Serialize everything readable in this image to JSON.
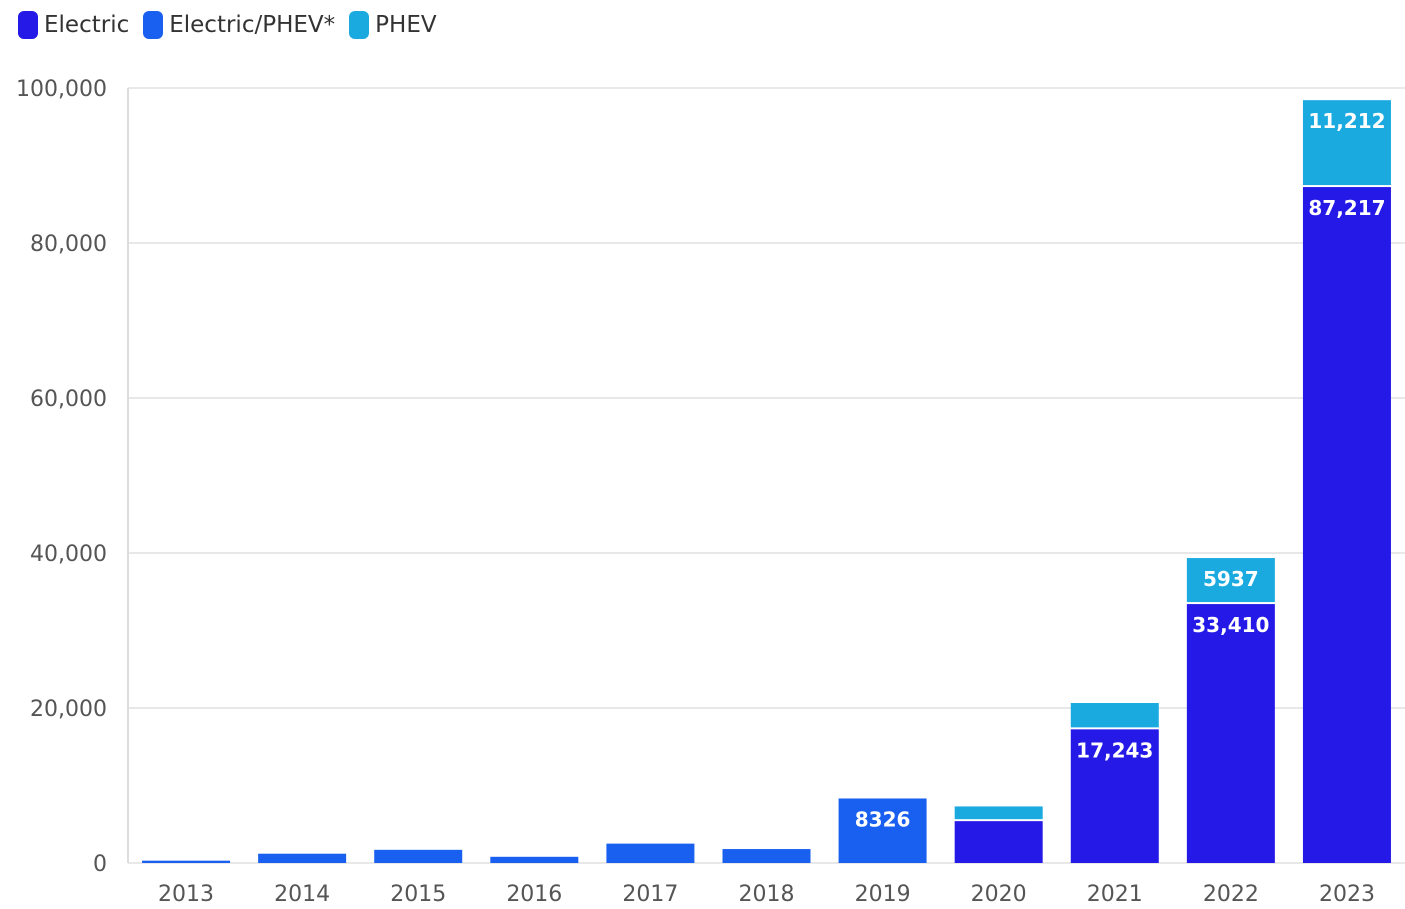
{
  "legend": [
    {
      "label": "Electric",
      "color": "#2419e6"
    },
    {
      "label": "Electric/PHEV*",
      "color": "#1a60f0"
    },
    {
      "label": "PHEV",
      "color": "#1aaae0"
    }
  ],
  "chart_data": {
    "type": "bar",
    "stacked": true,
    "categories": [
      "2013",
      "2014",
      "2015",
      "2016",
      "2017",
      "2018",
      "2019",
      "2020",
      "2021",
      "2022",
      "2023"
    ],
    "series": [
      {
        "name": "Electric",
        "color": "#2419e6",
        "values": [
          null,
          null,
          null,
          null,
          null,
          null,
          null,
          5400,
          17243,
          33410,
          87217
        ]
      },
      {
        "name": "Electric/PHEV*",
        "color": "#1a60f0",
        "values": [
          300,
          1200,
          1700,
          800,
          2500,
          1800,
          8326,
          null,
          null,
          null,
          null
        ]
      },
      {
        "name": "PHEV",
        "color": "#1aaae0",
        "values": [
          null,
          null,
          null,
          null,
          null,
          null,
          null,
          1900,
          3400,
          5937,
          11212
        ]
      }
    ],
    "data_labels": [
      {
        "category": "2019",
        "series": "Electric/PHEV*",
        "text": "8326"
      },
      {
        "category": "2021",
        "series": "Electric",
        "text": "17,243"
      },
      {
        "category": "2022",
        "series": "Electric",
        "text": "33,410"
      },
      {
        "category": "2022",
        "series": "PHEV",
        "text": "5937"
      },
      {
        "category": "2023",
        "series": "Electric",
        "text": "87,217"
      },
      {
        "category": "2023",
        "series": "PHEV",
        "text": "11,212"
      }
    ],
    "ylim": [
      0,
      100000
    ],
    "yticks": [
      0,
      20000,
      40000,
      60000,
      80000,
      100000
    ],
    "ytick_labels": [
      "0",
      "20,000",
      "40,000",
      "60,000",
      "80,000",
      "100,000"
    ],
    "grid": true,
    "legend_position": "top-left",
    "title": "",
    "xlabel": "",
    "ylabel": ""
  }
}
